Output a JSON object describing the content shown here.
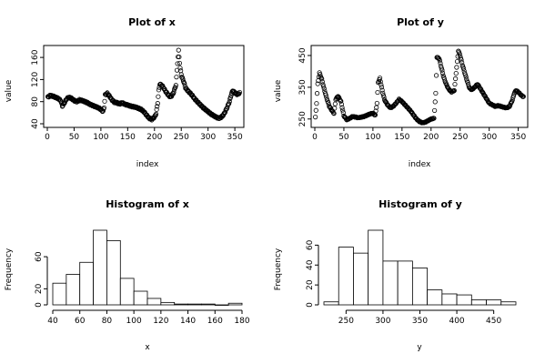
{
  "chart_data": [
    {
      "type": "scatter",
      "title": "Plot of x",
      "xlabel": "index",
      "ylabel": "value",
      "xlim": [
        0,
        360
      ],
      "ylim": [
        40,
        175
      ],
      "xticks": [
        0,
        50,
        100,
        150,
        200,
        250,
        300,
        350
      ],
      "yticks": [
        40,
        80,
        120,
        160
      ],
      "frame": "box",
      "control_points": [
        [
          1,
          88
        ],
        [
          5,
          91
        ],
        [
          10,
          90
        ],
        [
          15,
          88
        ],
        [
          20,
          86
        ],
        [
          25,
          82
        ],
        [
          28,
          72
        ],
        [
          32,
          78
        ],
        [
          36,
          85
        ],
        [
          40,
          88
        ],
        [
          45,
          86
        ],
        [
          50,
          82
        ],
        [
          55,
          80
        ],
        [
          60,
          83
        ],
        [
          65,
          82
        ],
        [
          70,
          80
        ],
        [
          75,
          78
        ],
        [
          80,
          75
        ],
        [
          85,
          73
        ],
        [
          90,
          71
        ],
        [
          95,
          69
        ],
        [
          100,
          66
        ],
        [
          104,
          62
        ],
        [
          106,
          70
        ],
        [
          108,
          92
        ],
        [
          112,
          95
        ],
        [
          116,
          90
        ],
        [
          120,
          84
        ],
        [
          125,
          79
        ],
        [
          130,
          78
        ],
        [
          135,
          76
        ],
        [
          140,
          78
        ],
        [
          145,
          75
        ],
        [
          150,
          74
        ],
        [
          155,
          72
        ],
        [
          160,
          71
        ],
        [
          165,
          70
        ],
        [
          170,
          68
        ],
        [
          175,
          66
        ],
        [
          180,
          62
        ],
        [
          185,
          56
        ],
        [
          190,
          50
        ],
        [
          195,
          48
        ],
        [
          200,
          52
        ],
        [
          203,
          58
        ],
        [
          206,
          78
        ],
        [
          208,
          100
        ],
        [
          210,
          112
        ],
        [
          215,
          108
        ],
        [
          220,
          100
        ],
        [
          225,
          93
        ],
        [
          230,
          88
        ],
        [
          235,
          95
        ],
        [
          240,
          110
        ],
        [
          243,
          150
        ],
        [
          245,
          172
        ],
        [
          248,
          140
        ],
        [
          251,
          125
        ],
        [
          254,
          118
        ],
        [
          258,
          105
        ],
        [
          262,
          100
        ],
        [
          266,
          96
        ],
        [
          270,
          92
        ],
        [
          275,
          85
        ],
        [
          280,
          80
        ],
        [
          285,
          75
        ],
        [
          290,
          70
        ],
        [
          295,
          66
        ],
        [
          300,
          62
        ],
        [
          305,
          58
        ],
        [
          310,
          55
        ],
        [
          315,
          52
        ],
        [
          320,
          50
        ],
        [
          325,
          52
        ],
        [
          330,
          58
        ],
        [
          335,
          68
        ],
        [
          340,
          80
        ],
        [
          343,
          92
        ],
        [
          346,
          100
        ],
        [
          350,
          96
        ],
        [
          355,
          93
        ],
        [
          359,
          96
        ]
      ]
    },
    {
      "type": "scatter",
      "title": "Plot of y",
      "xlabel": "index",
      "ylabel": "value",
      "xlim": [
        0,
        360
      ],
      "ylim": [
        235,
        470
      ],
      "xticks": [
        0,
        50,
        100,
        150,
        200,
        250,
        300,
        350
      ],
      "yticks": [
        250,
        350,
        450
      ],
      "frame": "box",
      "control_points": [
        [
          1,
          255
        ],
        [
          3,
          300
        ],
        [
          5,
          360
        ],
        [
          8,
          395
        ],
        [
          12,
          375
        ],
        [
          16,
          345
        ],
        [
          20,
          318
        ],
        [
          25,
          290
        ],
        [
          30,
          275
        ],
        [
          33,
          268
        ],
        [
          36,
          312
        ],
        [
          40,
          322
        ],
        [
          45,
          305
        ],
        [
          50,
          260
        ],
        [
          55,
          248
        ],
        [
          60,
          252
        ],
        [
          65,
          258
        ],
        [
          70,
          256
        ],
        [
          75,
          254
        ],
        [
          80,
          256
        ],
        [
          85,
          258
        ],
        [
          90,
          262
        ],
        [
          95,
          266
        ],
        [
          100,
          268
        ],
        [
          104,
          262
        ],
        [
          107,
          300
        ],
        [
          109,
          365
        ],
        [
          112,
          378
        ],
        [
          116,
          340
        ],
        [
          120,
          310
        ],
        [
          125,
          295
        ],
        [
          130,
          285
        ],
        [
          135,
          290
        ],
        [
          140,
          300
        ],
        [
          145,
          312
        ],
        [
          150,
          305
        ],
        [
          155,
          295
        ],
        [
          160,
          285
        ],
        [
          165,
          275
        ],
        [
          170,
          262
        ],
        [
          175,
          250
        ],
        [
          180,
          242
        ],
        [
          185,
          238
        ],
        [
          190,
          240
        ],
        [
          195,
          245
        ],
        [
          200,
          250
        ],
        [
          205,
          252
        ],
        [
          208,
          330
        ],
        [
          210,
          445
        ],
        [
          214,
          440
        ],
        [
          218,
          410
        ],
        [
          222,
          380
        ],
        [
          226,
          360
        ],
        [
          230,
          345
        ],
        [
          235,
          335
        ],
        [
          240,
          340
        ],
        [
          243,
          395
        ],
        [
          245,
          430
        ],
        [
          247,
          465
        ],
        [
          250,
          450
        ],
        [
          254,
          420
        ],
        [
          258,
          395
        ],
        [
          262,
          370
        ],
        [
          266,
          348
        ],
        [
          270,
          342
        ],
        [
          275,
          350
        ],
        [
          280,
          360
        ],
        [
          285,
          345
        ],
        [
          290,
          330
        ],
        [
          295,
          315
        ],
        [
          300,
          300
        ],
        [
          305,
          295
        ],
        [
          310,
          290
        ],
        [
          315,
          292
        ],
        [
          320,
          290
        ],
        [
          325,
          287
        ],
        [
          330,
          285
        ],
        [
          335,
          290
        ],
        [
          340,
          310
        ],
        [
          343,
          330
        ],
        [
          346,
          340
        ],
        [
          350,
          335
        ],
        [
          355,
          325
        ],
        [
          359,
          320
        ]
      ]
    },
    {
      "type": "bar",
      "title": "Histogram of x",
      "xlabel": "x",
      "ylabel": "Frequency",
      "bin_edges": [
        40,
        50,
        60,
        70,
        80,
        90,
        100,
        110,
        120,
        130,
        140,
        150,
        160,
        170,
        180
      ],
      "values": [
        27,
        38,
        53,
        93,
        80,
        33,
        17,
        8,
        3,
        1,
        1,
        1,
        0,
        2
      ],
      "xlim": [
        40,
        180
      ],
      "ylim": [
        0,
        93
      ],
      "xticks": [
        40,
        60,
        80,
        100,
        120,
        140,
        160,
        180
      ],
      "yticks": [
        0,
        20,
        60
      ]
    },
    {
      "type": "bar",
      "title": "Histogram of y",
      "xlabel": "y",
      "ylabel": "Frequency",
      "bin_edges": [
        220,
        240,
        260,
        280,
        300,
        320,
        340,
        360,
        380,
        400,
        420,
        440,
        460,
        480
      ],
      "values": [
        3,
        58,
        52,
        75,
        44,
        44,
        37,
        15,
        11,
        10,
        5,
        5,
        3
      ],
      "xlim": [
        220,
        480
      ],
      "ylim": [
        0,
        75
      ],
      "xticks": [
        250,
        300,
        350,
        400,
        450
      ],
      "yticks": [
        0,
        20,
        40,
        60
      ]
    }
  ]
}
